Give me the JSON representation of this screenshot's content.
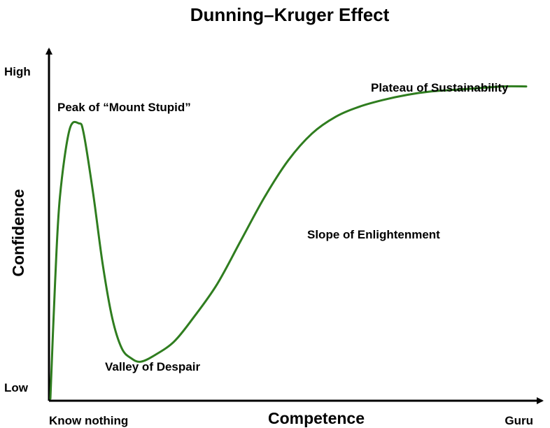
{
  "chart_data": {
    "type": "line",
    "title": "Dunning–Kruger Effect",
    "xlabel": "Competence",
    "ylabel": "Confidence",
    "x_ticks": [
      "Know nothing",
      "Guru"
    ],
    "y_ticks": [
      "Low",
      "High"
    ],
    "xlim": [
      0,
      100
    ],
    "ylim": [
      0,
      100
    ],
    "grid": false,
    "line_color": "#2f7d1f",
    "axis_color": "#000000",
    "series": [
      {
        "x": [
          0,
          1,
          2,
          4,
          6,
          7,
          9,
          11,
          13,
          15,
          17,
          19,
          22,
          26,
          30,
          35,
          40,
          45,
          50,
          55,
          60,
          65,
          70,
          75,
          80,
          85,
          90,
          95,
          100
        ],
        "values": [
          0,
          35,
          60,
          80,
          82,
          79,
          61,
          40,
          24,
          15,
          12,
          11,
          13,
          17,
          24,
          34,
          47,
          60,
          71,
          79,
          84,
          87,
          89,
          90.5,
          91.5,
          92,
          92.5,
          93,
          93
        ]
      }
    ],
    "annotations": [
      {
        "text": "Peak of “Mount Stupid”",
        "x": 6,
        "y": 82
      },
      {
        "text": "Valley of Despair",
        "x": 19,
        "y": 11
      },
      {
        "text": "Slope of Enlightenment",
        "x": 55,
        "y": 50
      },
      {
        "text": "Plateau of Sustainability",
        "x": 90,
        "y": 93
      }
    ]
  }
}
